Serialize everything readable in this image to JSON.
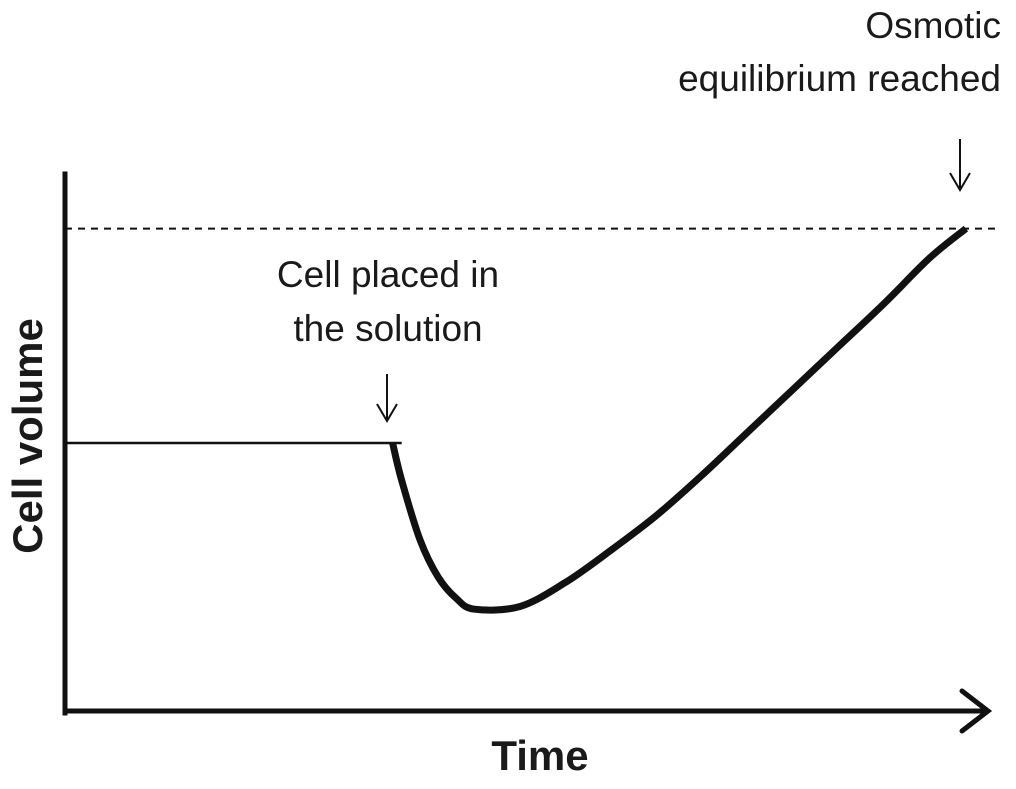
{
  "chart_data": {
    "type": "line",
    "title": "",
    "xlabel": "Time",
    "ylabel": "Cell volume",
    "grid": false,
    "legend": "none",
    "xlim": [
      0,
      100
    ],
    "ylim": [
      0,
      100
    ],
    "reference_line": {
      "name": "",
      "y": 90,
      "style": "dashed"
    },
    "series": [
      {
        "name": "",
        "segments": [
          {
            "style": "thin",
            "x": [
              0,
              37
            ],
            "y": [
              50,
              50
            ]
          },
          {
            "style": "thick",
            "x": [
              36,
              37,
              39,
              41,
              43,
              45,
              50,
              55,
              60,
              65,
              70,
              75,
              80,
              85,
              90,
              95,
              99
            ],
            "y": [
              50,
              43,
              32,
              25,
              21,
              19,
              19.5,
              24,
              30,
              36.5,
              44,
              52,
              60,
              68,
              76,
              84.5,
              90
            ]
          }
        ]
      }
    ],
    "annotations": [
      {
        "id": "cell-placed",
        "lines": [
          "Cell placed in",
          "the solution"
        ],
        "x": 36,
        "arrow": "down"
      },
      {
        "id": "equilibrium",
        "lines": [
          "Osmotic",
          "equilibrium reached"
        ],
        "x": 98,
        "arrow": "down"
      }
    ]
  }
}
